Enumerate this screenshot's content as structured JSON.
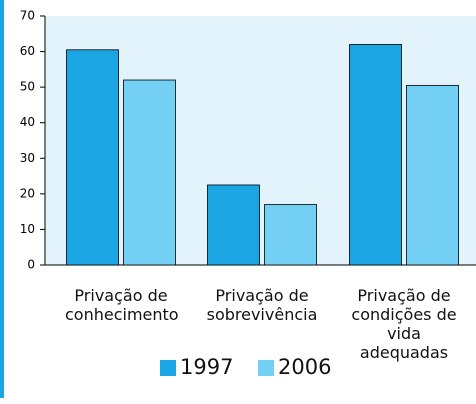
{
  "chart_data": {
    "type": "bar",
    "categories": [
      "Privação de conhecimento",
      "Privação de sobrevivência",
      "Privação de condições de vida adequadas"
    ],
    "series": [
      {
        "name": "1997",
        "color": "#1ba6e3",
        "values": [
          60.5,
          22.5,
          62
        ]
      },
      {
        "name": "2006",
        "color": "#74cff5",
        "values": [
          52,
          17,
          50.5
        ]
      }
    ],
    "ylim": [
      0,
      70
    ],
    "yticks": [
      0,
      10,
      20,
      30,
      40,
      50,
      60,
      70
    ]
  }
}
